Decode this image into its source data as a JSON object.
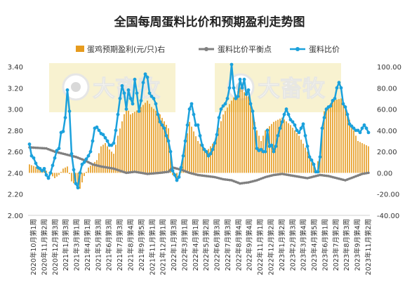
{
  "chart_data": {
    "type": "bar+line",
    "title": "全国每周蛋料比价和预期盈利走势图",
    "legend": {
      "placement": "top",
      "items": [
        {
          "label": "蛋鸡预期盈利(元/只)右",
          "color": "#E69B1E",
          "kind": "bar"
        },
        {
          "label": "蛋料比价平衡点",
          "color": "#808080",
          "kind": "line"
        },
        {
          "label": "蛋料比价",
          "color": "#1BA1DC",
          "kind": "line"
        }
      ]
    },
    "left_axis": {
      "min": 2.0,
      "max": 3.4,
      "step": 0.2,
      "decimals": 2
    },
    "right_axis": {
      "min": -40,
      "max": 100,
      "step": 20,
      "decimals": 2
    },
    "grid": false,
    "x_labels": [
      "2020年10月第1周",
      "2020年11月第2周",
      "2020年12月第3周",
      "2021年1月第3周",
      "2021年3月第1周",
      "2021年4月第1周",
      "2021年5月第3周",
      "2021年6月第3周",
      "2021年7月第3周",
      "2021年8月第4周",
      "2021年9月第5周",
      "2021年11月第1周",
      "2021年12月第1周",
      "2022年1月第3周",
      "2022年3月第1周",
      "2022年4月第1周",
      "2022年5月第2周",
      "2022年6月第3周",
      "2022年7月第3周",
      "2022年8月第4周",
      "2022年9月第4周",
      "2022年11月第1周",
      "2022年12月第2周",
      "2023年1月第2周",
      "2023年2月第3周",
      "2023年3月第4周",
      "2023年4月第5周",
      "2023年6月第1周",
      "2023年7月第2周",
      "2023年8月第3周",
      "2023年9月第4周",
      "2023年11月第2周"
    ],
    "weeks": 162,
    "ratio_anchors": [
      [
        0,
        2.67
      ],
      [
        1,
        2.56
      ],
      [
        2,
        2.54
      ],
      [
        3,
        2.49
      ],
      [
        4,
        2.45
      ],
      [
        5,
        2.44
      ],
      [
        6,
        2.42
      ],
      [
        7,
        2.44
      ],
      [
        8,
        2.38
      ],
      [
        9,
        2.35
      ],
      [
        10,
        2.4
      ],
      [
        11,
        2.47
      ],
      [
        12,
        2.54
      ],
      [
        13,
        2.61
      ],
      [
        14,
        2.63
      ],
      [
        15,
        2.78
      ],
      [
        16,
        2.79
      ],
      [
        17,
        2.92
      ],
      [
        18,
        3.18
      ],
      [
        19,
        2.98
      ],
      [
        20,
        2.58
      ],
      [
        21,
        2.43
      ],
      [
        22,
        2.3
      ],
      [
        23,
        2.26
      ],
      [
        24,
        2.4
      ],
      [
        25,
        2.48
      ],
      [
        26,
        2.5
      ],
      [
        27,
        2.53
      ],
      [
        28,
        2.56
      ],
      [
        29,
        2.6
      ],
      [
        30,
        2.7
      ],
      [
        31,
        2.82
      ],
      [
        32,
        2.83
      ],
      [
        33,
        2.8
      ],
      [
        34,
        2.77
      ],
      [
        35,
        2.76
      ],
      [
        36,
        2.73
      ],
      [
        37,
        2.7
      ],
      [
        38,
        2.66
      ],
      [
        39,
        2.66
      ],
      [
        40,
        2.68
      ],
      [
        41,
        2.8
      ],
      [
        42,
        2.95
      ],
      [
        43,
        3.1
      ],
      [
        44,
        3.22
      ],
      [
        45,
        3.15
      ],
      [
        46,
        3.0
      ],
      [
        47,
        3.18
      ],
      [
        48,
        3.1
      ],
      [
        49,
        3.05
      ],
      [
        50,
        3.28
      ],
      [
        51,
        3.15
      ],
      [
        52,
        2.98
      ],
      [
        53,
        3.08
      ],
      [
        54,
        3.25
      ],
      [
        55,
        3.33
      ],
      [
        56,
        3.3
      ],
      [
        57,
        3.15
      ],
      [
        58,
        3.12
      ],
      [
        59,
        3.1
      ],
      [
        60,
        3.05
      ],
      [
        61,
        2.95
      ],
      [
        62,
        2.88
      ],
      [
        63,
        2.85
      ],
      [
        64,
        2.82
      ],
      [
        65,
        2.75
      ],
      [
        66,
        2.7
      ],
      [
        67,
        2.6
      ],
      [
        68,
        2.42
      ],
      [
        69,
        2.38
      ],
      [
        70,
        2.33
      ],
      [
        71,
        2.36
      ],
      [
        72,
        2.45
      ],
      [
        73,
        2.56
      ],
      [
        74,
        2.7
      ],
      [
        75,
        2.85
      ],
      [
        76,
        3.0
      ],
      [
        77,
        3.05
      ],
      [
        78,
        2.95
      ],
      [
        79,
        2.85
      ],
      [
        80,
        2.85
      ],
      [
        81,
        2.75
      ],
      [
        82,
        2.66
      ],
      [
        83,
        2.62
      ],
      [
        84,
        2.6
      ],
      [
        85,
        2.56
      ],
      [
        86,
        2.58
      ],
      [
        87,
        2.62
      ],
      [
        88,
        2.68
      ],
      [
        89,
        2.76
      ],
      [
        90,
        2.92
      ],
      [
        91,
        3.0
      ],
      [
        92,
        3.03
      ],
      [
        93,
        3.05
      ],
      [
        94,
        3.1
      ],
      [
        95,
        3.2
      ],
      [
        96,
        3.42
      ],
      [
        97,
        3.2
      ],
      [
        98,
        3.1
      ],
      [
        99,
        3.12
      ],
      [
        100,
        3.28
      ],
      [
        101,
        3.2
      ],
      [
        102,
        3.28
      ],
      [
        103,
        3.14
      ],
      [
        104,
        3.18
      ],
      [
        105,
        3.05
      ],
      [
        106,
        2.98
      ],
      [
        107,
        2.82
      ],
      [
        108,
        2.63
      ],
      [
        109,
        2.61
      ],
      [
        110,
        2.62
      ],
      [
        111,
        2.6
      ],
      [
        112,
        2.6
      ],
      [
        113,
        2.8
      ],
      [
        114,
        2.65
      ],
      [
        115,
        2.66
      ],
      [
        116,
        2.6
      ],
      [
        117,
        2.65
      ],
      [
        118,
        2.75
      ],
      [
        119,
        2.82
      ],
      [
        120,
        2.88
      ],
      [
        121,
        2.95
      ],
      [
        122,
        3.0
      ],
      [
        123,
        2.95
      ],
      [
        124,
        2.9
      ],
      [
        125,
        2.88
      ],
      [
        126,
        2.85
      ],
      [
        127,
        2.8
      ],
      [
        128,
        2.78
      ],
      [
        129,
        2.82
      ],
      [
        130,
        2.86
      ],
      [
        131,
        2.75
      ],
      [
        132,
        2.65
      ],
      [
        133,
        2.55
      ],
      [
        134,
        2.52
      ],
      [
        135,
        2.48
      ],
      [
        136,
        2.41
      ],
      [
        137,
        2.41
      ],
      [
        138,
        2.55
      ],
      [
        139,
        2.82
      ],
      [
        140,
        2.92
      ],
      [
        141,
        3.0
      ],
      [
        142,
        3.02
      ],
      [
        143,
        3.03
      ],
      [
        144,
        3.08
      ],
      [
        145,
        3.1
      ],
      [
        146,
        3.2
      ],
      [
        147,
        3.25
      ],
      [
        148,
        3.2
      ],
      [
        149,
        3.05
      ],
      [
        150,
        3.02
      ],
      [
        151,
        2.95
      ],
      [
        152,
        2.86
      ],
      [
        153,
        2.84
      ],
      [
        154,
        2.82
      ],
      [
        155,
        2.8
      ],
      [
        156,
        2.8
      ],
      [
        157,
        2.78
      ],
      [
        158,
        2.82
      ],
      [
        159,
        2.85
      ],
      [
        160,
        2.82
      ],
      [
        161,
        2.78
      ]
    ],
    "balance_anchors": [
      [
        0,
        2.64
      ],
      [
        8,
        2.63
      ],
      [
        12,
        2.6
      ],
      [
        18,
        2.57
      ],
      [
        22,
        2.55
      ],
      [
        26,
        2.52
      ],
      [
        30,
        2.48
      ],
      [
        34,
        2.46
      ],
      [
        40,
        2.44
      ],
      [
        46,
        2.4
      ],
      [
        50,
        2.41
      ],
      [
        56,
        2.39
      ],
      [
        62,
        2.4
      ],
      [
        66,
        2.41
      ],
      [
        68,
        2.45
      ],
      [
        72,
        2.43
      ],
      [
        76,
        2.4
      ],
      [
        80,
        2.38
      ],
      [
        84,
        2.37
      ],
      [
        88,
        2.36
      ],
      [
        92,
        2.34
      ],
      [
        96,
        2.33
      ],
      [
        100,
        2.3
      ],
      [
        104,
        2.31
      ],
      [
        108,
        2.33
      ],
      [
        112,
        2.36
      ],
      [
        116,
        2.38
      ],
      [
        120,
        2.39
      ],
      [
        126,
        2.37
      ],
      [
        132,
        2.35
      ],
      [
        138,
        2.38
      ],
      [
        142,
        2.37
      ],
      [
        146,
        2.35
      ],
      [
        150,
        2.33
      ],
      [
        154,
        2.36
      ],
      [
        158,
        2.39
      ],
      [
        161,
        2.4
      ]
    ],
    "profit_anchors": [
      [
        0,
        8
      ],
      [
        4,
        5
      ],
      [
        8,
        2
      ],
      [
        12,
        -5
      ],
      [
        14,
        -2
      ],
      [
        16,
        4
      ],
      [
        18,
        6
      ],
      [
        20,
        -8
      ],
      [
        24,
        -15
      ],
      [
        26,
        -3
      ],
      [
        28,
        5
      ],
      [
        32,
        12
      ],
      [
        34,
        25
      ],
      [
        36,
        28
      ],
      [
        38,
        22
      ],
      [
        40,
        18
      ],
      [
        42,
        35
      ],
      [
        46,
        62
      ],
      [
        48,
        55
      ],
      [
        52,
        60
      ],
      [
        56,
        68
      ],
      [
        58,
        62
      ],
      [
        62,
        55
      ],
      [
        66,
        42
      ],
      [
        68,
        -2
      ],
      [
        70,
        -5
      ],
      [
        72,
        5
      ],
      [
        76,
        48
      ],
      [
        80,
        30
      ],
      [
        84,
        20
      ],
      [
        88,
        30
      ],
      [
        92,
        55
      ],
      [
        96,
        68
      ],
      [
        100,
        80
      ],
      [
        104,
        72
      ],
      [
        108,
        40
      ],
      [
        110,
        30
      ],
      [
        112,
        40
      ],
      [
        116,
        48
      ],
      [
        120,
        52
      ],
      [
        124,
        45
      ],
      [
        128,
        35
      ],
      [
        132,
        20
      ],
      [
        134,
        10
      ],
      [
        136,
        2
      ],
      [
        138,
        20
      ],
      [
        140,
        58
      ],
      [
        144,
        68
      ],
      [
        148,
        70
      ],
      [
        152,
        50
      ],
      [
        156,
        30
      ],
      [
        161,
        25
      ]
    ]
  }
}
